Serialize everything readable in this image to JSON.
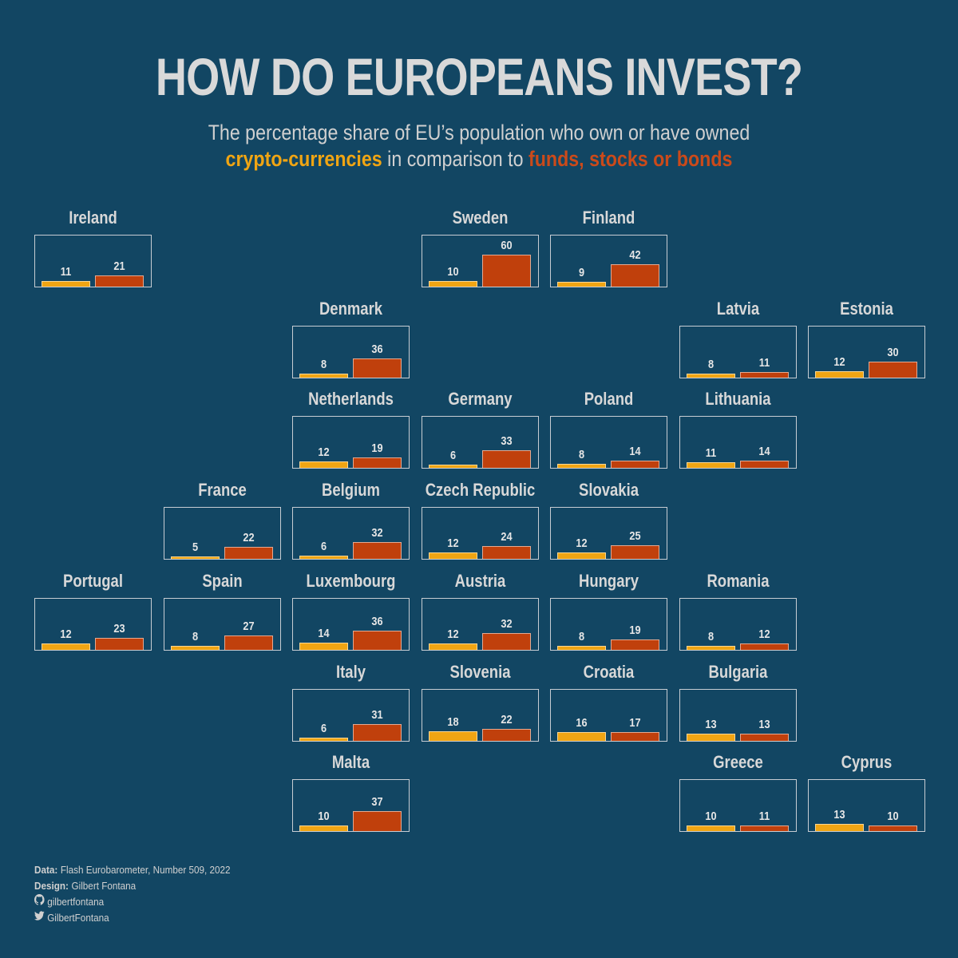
{
  "title": "HOW DO EUROPEANS INVEST?",
  "subtitle": {
    "line1": "The percentage share of EU’s population who own or have owned",
    "crypto_label": "crypto-currencies",
    "middle": " in comparison to ",
    "funds_label": "funds, stocks or bonds"
  },
  "colors": {
    "background": "#124663",
    "crypto": "#f0a513",
    "funds": "#c0400c"
  },
  "chart_data": {
    "type": "bar",
    "layout": "tile-grid small multiples",
    "series_names": [
      "crypto-currencies",
      "funds, stocks or bonds"
    ],
    "ylim": [
      0,
      60
    ],
    "countries": [
      {
        "name": "Ireland",
        "row": 0,
        "col": 0,
        "crypto": 11,
        "funds": 21
      },
      {
        "name": "Sweden",
        "row": 0,
        "col": 3,
        "crypto": 10,
        "funds": 60
      },
      {
        "name": "Finland",
        "row": 0,
        "col": 4,
        "crypto": 9,
        "funds": 42
      },
      {
        "name": "Denmark",
        "row": 1,
        "col": 2,
        "crypto": 8,
        "funds": 36
      },
      {
        "name": "Latvia",
        "row": 1,
        "col": 5,
        "crypto": 8,
        "funds": 11
      },
      {
        "name": "Estonia",
        "row": 1,
        "col": 6,
        "crypto": 12,
        "funds": 30
      },
      {
        "name": "Netherlands",
        "row": 2,
        "col": 2,
        "crypto": 12,
        "funds": 19
      },
      {
        "name": "Germany",
        "row": 2,
        "col": 3,
        "crypto": 6,
        "funds": 33
      },
      {
        "name": "Poland",
        "row": 2,
        "col": 4,
        "crypto": 8,
        "funds": 14
      },
      {
        "name": "Lithuania",
        "row": 2,
        "col": 5,
        "crypto": 11,
        "funds": 14
      },
      {
        "name": "France",
        "row": 3,
        "col": 1,
        "crypto": 5,
        "funds": 22
      },
      {
        "name": "Belgium",
        "row": 3,
        "col": 2,
        "crypto": 6,
        "funds": 32
      },
      {
        "name": "Czech Republic",
        "row": 3,
        "col": 3,
        "crypto": 12,
        "funds": 24
      },
      {
        "name": "Slovakia",
        "row": 3,
        "col": 4,
        "crypto": 12,
        "funds": 25
      },
      {
        "name": "Portugal",
        "row": 4,
        "col": 0,
        "crypto": 12,
        "funds": 23
      },
      {
        "name": "Spain",
        "row": 4,
        "col": 1,
        "crypto": 8,
        "funds": 27
      },
      {
        "name": "Luxembourg",
        "row": 4,
        "col": 2,
        "crypto": 14,
        "funds": 36
      },
      {
        "name": "Austria",
        "row": 4,
        "col": 3,
        "crypto": 12,
        "funds": 32
      },
      {
        "name": "Hungary",
        "row": 4,
        "col": 4,
        "crypto": 8,
        "funds": 19
      },
      {
        "name": "Romania",
        "row": 4,
        "col": 5,
        "crypto": 8,
        "funds": 12
      },
      {
        "name": "Italy",
        "row": 5,
        "col": 2,
        "crypto": 6,
        "funds": 31
      },
      {
        "name": "Slovenia",
        "row": 5,
        "col": 3,
        "crypto": 18,
        "funds": 22
      },
      {
        "name": "Croatia",
        "row": 5,
        "col": 4,
        "crypto": 16,
        "funds": 17
      },
      {
        "name": "Bulgaria",
        "row": 5,
        "col": 5,
        "crypto": 13,
        "funds": 13
      },
      {
        "name": "Malta",
        "row": 6,
        "col": 2,
        "crypto": 10,
        "funds": 37
      },
      {
        "name": "Greece",
        "row": 6,
        "col": 5,
        "crypto": 10,
        "funds": 11
      },
      {
        "name": "Cyprus",
        "row": 6,
        "col": 6,
        "crypto": 13,
        "funds": 10
      }
    ]
  },
  "footer": {
    "data_label": "Data:",
    "data_text": " Flash Eurobarometer, Number 509, 2022",
    "design_label": "Design:",
    "design_text": " Gilbert Fontana",
    "github_icon": "github-icon",
    "github": "gilbertfontana",
    "twitter_icon": "twitter-icon",
    "twitter": "GilbertFontana"
  }
}
